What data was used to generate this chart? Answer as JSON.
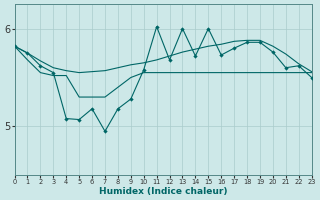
{
  "xlabel": "Humidex (Indice chaleur)",
  "bg_color": "#cde8e8",
  "grid_color": "#aacccc",
  "line_color": "#006666",
  "xlim": [
    0,
    23
  ],
  "ylim": [
    4.5,
    6.25
  ],
  "yticks": [
    5,
    6
  ],
  "xticks": [
    0,
    1,
    2,
    3,
    4,
    5,
    6,
    7,
    8,
    9,
    10,
    11,
    12,
    13,
    14,
    15,
    16,
    17,
    18,
    19,
    20,
    21,
    22,
    23
  ],
  "line1_x": [
    0,
    1,
    2,
    3,
    4,
    5,
    6,
    7,
    8,
    9,
    10,
    11,
    12,
    13,
    14,
    15,
    16,
    17,
    18,
    19,
    20,
    21,
    22,
    23
  ],
  "line1_y": [
    5.82,
    5.75,
    5.67,
    5.6,
    5.57,
    5.55,
    5.56,
    5.57,
    5.6,
    5.63,
    5.65,
    5.68,
    5.72,
    5.76,
    5.79,
    5.82,
    5.84,
    5.87,
    5.88,
    5.88,
    5.82,
    5.74,
    5.64,
    5.56
  ],
  "line2_x": [
    0,
    1,
    2,
    3,
    4,
    5,
    6,
    7,
    8,
    9,
    10,
    11,
    12,
    13,
    14,
    15,
    16,
    17,
    18,
    19,
    20,
    21,
    22,
    23
  ],
  "line2_y": [
    5.82,
    5.75,
    5.62,
    5.55,
    5.08,
    5.07,
    5.18,
    4.95,
    5.18,
    5.28,
    5.58,
    6.02,
    5.68,
    6.0,
    5.72,
    6.0,
    5.73,
    5.8,
    5.86,
    5.86,
    5.76,
    5.6,
    5.62,
    5.5
  ],
  "line3_x": [
    0,
    1,
    2,
    3,
    4,
    5,
    6,
    7,
    8,
    9,
    10,
    11,
    12,
    13,
    14,
    15,
    16,
    17,
    18,
    19,
    20,
    21,
    22,
    23
  ],
  "line3_y": [
    5.82,
    5.68,
    5.55,
    5.52,
    5.52,
    5.3,
    5.3,
    5.3,
    5.4,
    5.5,
    5.55,
    5.55,
    5.55,
    5.55,
    5.55,
    5.55,
    5.55,
    5.55,
    5.55,
    5.55,
    5.55,
    5.55,
    5.55,
    5.55
  ]
}
